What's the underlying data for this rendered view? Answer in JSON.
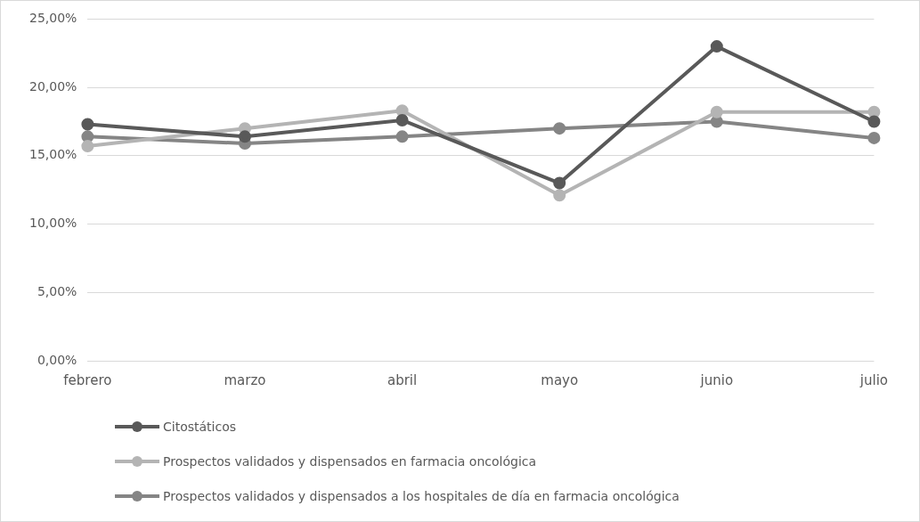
{
  "chart_data": {
    "type": "line",
    "categories": [
      "febrero",
      "marzo",
      "abril",
      "mayo",
      "junio",
      "julio"
    ],
    "series": [
      {
        "name": "Citostáticos",
        "color": "#595959",
        "values": [
          17.3,
          16.4,
          17.6,
          13.0,
          23.0,
          17.5
        ]
      },
      {
        "name": "Prospectos validados y dispensados en farmacia oncológica",
        "color": "#b4b4b4",
        "values": [
          15.7,
          17.0,
          18.3,
          12.1,
          18.2,
          18.2
        ]
      },
      {
        "name": "Prospectos validados y dispensados a los hospitales de día en farmacia oncológica",
        "color": "#858585",
        "values": [
          16.4,
          15.9,
          16.4,
          17.0,
          17.5,
          16.3
        ]
      }
    ],
    "ylim": [
      0,
      25
    ],
    "yticks": [
      {
        "value": 0,
        "label": "0,00%"
      },
      {
        "value": 5,
        "label": "5,00%"
      },
      {
        "value": 10,
        "label": "10,00%"
      },
      {
        "value": 15,
        "label": "15,00%"
      },
      {
        "value": 20,
        "label": "20,00%"
      },
      {
        "value": 25,
        "label": "25,00%"
      }
    ],
    "grid": "y",
    "legend": "bottom",
    "marker": "circle",
    "line_style": "solid"
  }
}
